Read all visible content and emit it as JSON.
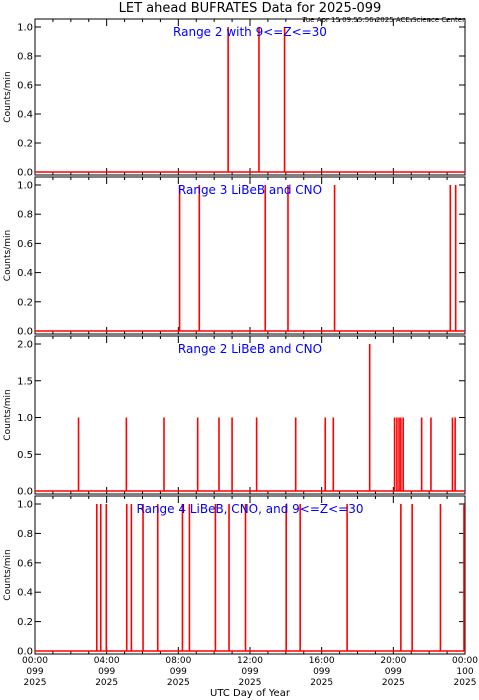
{
  "figure": {
    "title": "LET ahead BUFRATES Data for 2025-099",
    "timestamp": "Tue Apr 15 09:55:56 2025 ACE Science Center",
    "xlabel": "UTC Day of Year"
  },
  "colors": {
    "background": "#ffffff",
    "axes": "#000000",
    "data_line": "#ff0000",
    "panel_title": "#0000ff"
  },
  "chart_data": [
    {
      "type": "line",
      "title": "Range 2 with 9<=Z<=30",
      "ylabel": "Counts/min",
      "xlim": [
        0,
        24
      ],
      "ylim": [
        0,
        1.0
      ],
      "yticks": [
        "0.0",
        "0.2",
        "0.4",
        "0.6",
        "0.8",
        "1.0"
      ],
      "baseline": 0,
      "spikes": [
        {
          "x": 10.78,
          "y": 1.0
        },
        {
          "x": 12.5,
          "y": 1.0
        },
        {
          "x": 13.93,
          "y": 1.0
        }
      ]
    },
    {
      "type": "line",
      "title": "Range 3 LiBeB and CNO",
      "ylabel": "Counts/min",
      "xlim": [
        0,
        24
      ],
      "ylim": [
        0,
        1.0
      ],
      "yticks": [
        "0.0",
        "0.2",
        "0.4",
        "0.6",
        "0.8",
        "1.0"
      ],
      "baseline": 0,
      "spikes": [
        {
          "x": 8.07,
          "y": 1.0
        },
        {
          "x": 9.17,
          "y": 1.0
        },
        {
          "x": 12.85,
          "y": 1.0
        },
        {
          "x": 14.12,
          "y": 1.0
        },
        {
          "x": 16.72,
          "y": 1.0
        },
        {
          "x": 23.18,
          "y": 1.0
        },
        {
          "x": 23.48,
          "y": 1.0
        }
      ]
    },
    {
      "type": "line",
      "title": "Range 2 LiBeB and CNO",
      "ylabel": "Counts/min",
      "xlim": [
        0,
        24
      ],
      "ylim": [
        0,
        2.0
      ],
      "yticks": [
        "0.0",
        "0.5",
        "1.0",
        "1.5",
        "2.0"
      ],
      "baseline": 0,
      "spikes": [
        {
          "x": 2.43,
          "y": 1.0
        },
        {
          "x": 5.1,
          "y": 1.0
        },
        {
          "x": 7.2,
          "y": 1.0
        },
        {
          "x": 9.08,
          "y": 1.0
        },
        {
          "x": 10.27,
          "y": 1.0
        },
        {
          "x": 11.0,
          "y": 1.0
        },
        {
          "x": 12.37,
          "y": 1.0
        },
        {
          "x": 14.55,
          "y": 1.0
        },
        {
          "x": 16.2,
          "y": 1.0
        },
        {
          "x": 16.65,
          "y": 1.0
        },
        {
          "x": 18.68,
          "y": 2.0
        },
        {
          "x": 20.07,
          "y": 1.0
        },
        {
          "x": 20.2,
          "y": 1.0
        },
        {
          "x": 20.32,
          "y": 1.0
        },
        {
          "x": 20.42,
          "y": 1.0
        },
        {
          "x": 20.55,
          "y": 1.0
        },
        {
          "x": 21.58,
          "y": 1.0
        },
        {
          "x": 22.1,
          "y": 1.0
        },
        {
          "x": 23.3,
          "y": 1.0
        },
        {
          "x": 23.45,
          "y": 1.0
        }
      ]
    },
    {
      "type": "line",
      "title": "Range 4 LiBeB, CNO, and 9<=Z<=30",
      "ylabel": "Counts/min",
      "xlim": [
        0,
        24
      ],
      "ylim": [
        0,
        1.0
      ],
      "yticks": [
        "0.0",
        "0.2",
        "0.4",
        "0.6",
        "0.8",
        "1.0"
      ],
      "baseline": 0,
      "spikes": [
        {
          "x": 3.45,
          "y": 1.0
        },
        {
          "x": 3.67,
          "y": 1.0
        },
        {
          "x": 3.98,
          "y": 1.0
        },
        {
          "x": 5.12,
          "y": 1.0
        },
        {
          "x": 5.38,
          "y": 1.0
        },
        {
          "x": 6.03,
          "y": 1.0
        },
        {
          "x": 6.85,
          "y": 1.0
        },
        {
          "x": 8.23,
          "y": 1.0
        },
        {
          "x": 8.62,
          "y": 1.0
        },
        {
          "x": 10.07,
          "y": 1.0
        },
        {
          "x": 10.83,
          "y": 1.0
        },
        {
          "x": 11.75,
          "y": 1.0
        },
        {
          "x": 14.02,
          "y": 1.0
        },
        {
          "x": 14.8,
          "y": 1.0
        },
        {
          "x": 17.42,
          "y": 1.0
        },
        {
          "x": 20.42,
          "y": 1.0
        },
        {
          "x": 21.05,
          "y": 1.0
        },
        {
          "x": 22.63,
          "y": 1.0
        },
        {
          "x": 24.53,
          "y": 1.0
        }
      ]
    }
  ],
  "xaxis": {
    "tick_hours": [
      0,
      4,
      8,
      12,
      16,
      20,
      24
    ],
    "tick_labels": [
      [
        "00:00",
        "099",
        "2025"
      ],
      [
        "04:00",
        "099",
        "2025"
      ],
      [
        "08:00",
        "099",
        "2025"
      ],
      [
        "12:00",
        "099",
        "2025"
      ],
      [
        "16:00",
        "099",
        "2025"
      ],
      [
        "20:00",
        "099",
        "2025"
      ],
      [
        "00:00",
        "100",
        "2025"
      ]
    ]
  }
}
